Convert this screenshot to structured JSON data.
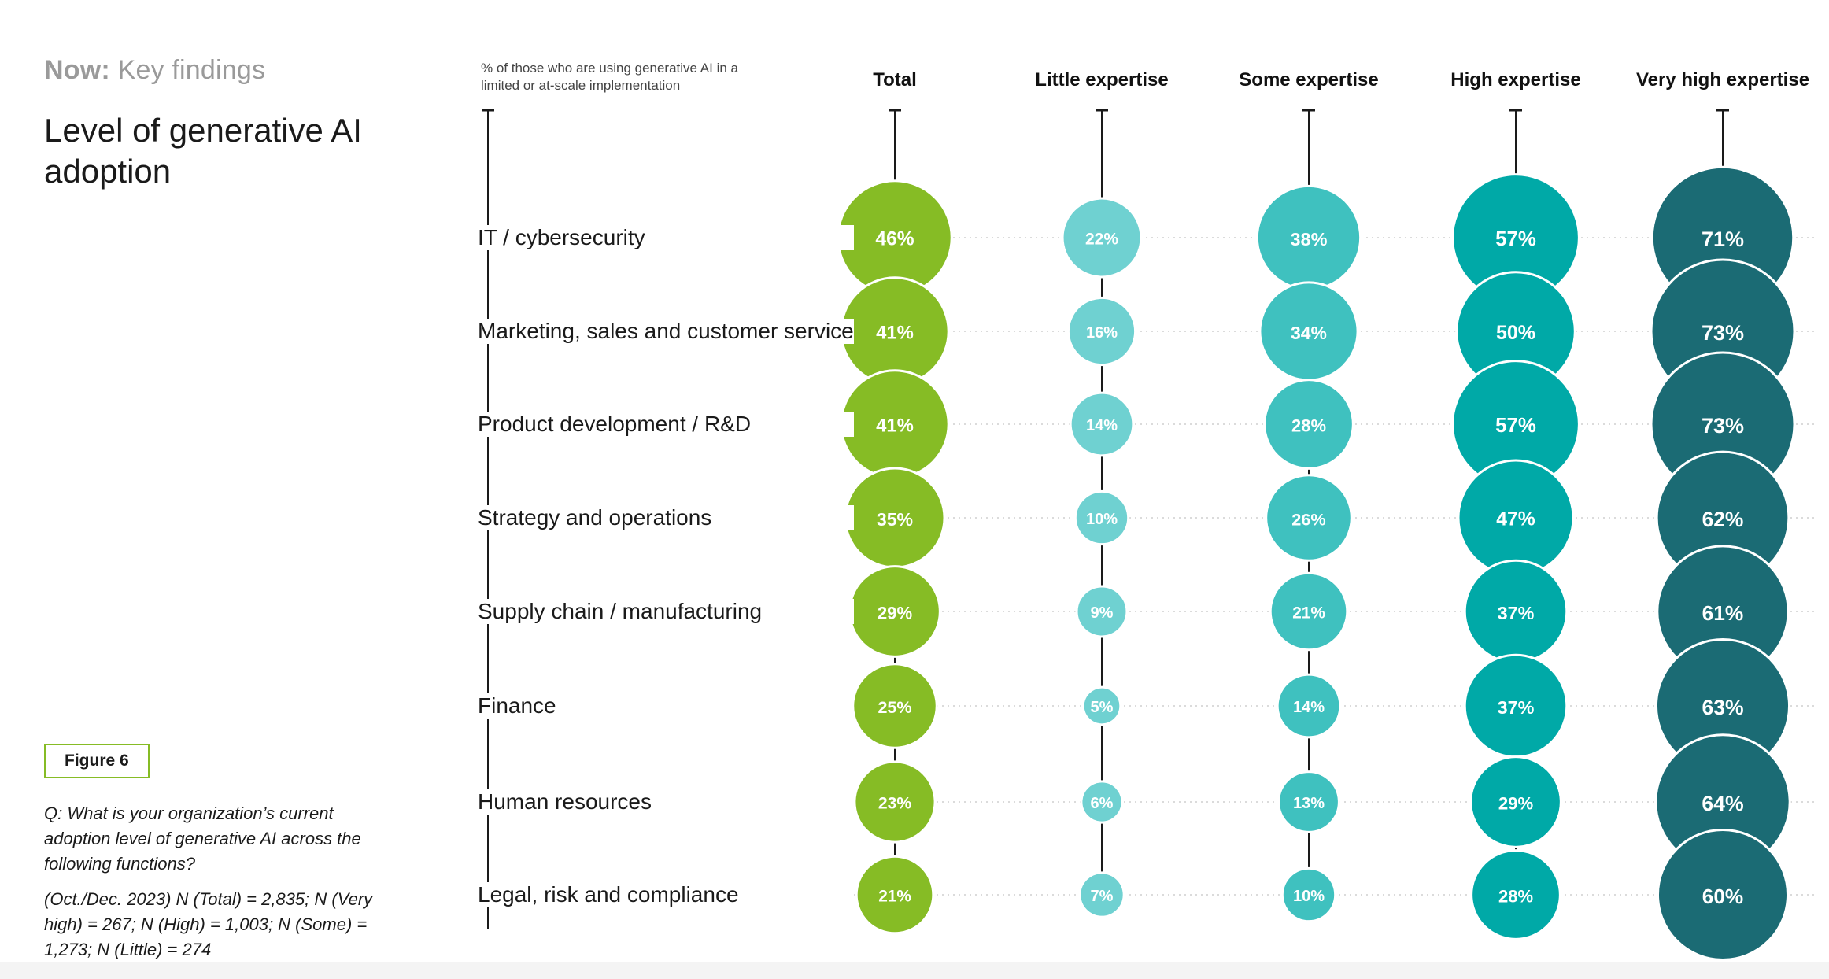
{
  "header": {
    "section_bold": "Now:",
    "section_rest": "Key findings",
    "title": "Level of generative AI adoption"
  },
  "figure": {
    "label": "Figure 6",
    "question": "Q: What is your organization’s current adoption level of generative AI across the following functions?",
    "sample": "(Oct./Dec. 2023) N (Total) = 2,835; N (Very high) = 267; N (High) = 1,003; N (Some) = 1,273; N (Little) = 274"
  },
  "colors": {
    "total": "#86bc25",
    "little": "#6fd1d1",
    "some": "#3fc1bf",
    "high": "#00a9a7",
    "very_high": "#1b6b74",
    "guide": "#cfcfcf",
    "axis": "#1a1a1a"
  },
  "chart_data": {
    "type": "bubble",
    "measure_note": "% of those who are using generative AI in a limited or at-scale implementation",
    "categories": [
      "IT / cybersecurity",
      "Marketing, sales and customer service",
      "Product development / R&D",
      "Strategy and operations",
      "Supply chain / manufacturing",
      "Finance",
      "Human resources",
      "Legal, risk and compliance"
    ],
    "series": [
      {
        "name": "Total",
        "color_key": "total",
        "values": [
          46,
          41,
          41,
          35,
          29,
          25,
          23,
          21
        ]
      },
      {
        "name": "Little expertise",
        "color_key": "little",
        "values": [
          22,
          16,
          14,
          10,
          9,
          5,
          6,
          7
        ]
      },
      {
        "name": "Some expertise",
        "color_key": "some",
        "values": [
          38,
          34,
          28,
          26,
          21,
          14,
          13,
          10
        ]
      },
      {
        "name": "High expertise",
        "color_key": "high",
        "values": [
          57,
          50,
          57,
          47,
          37,
          37,
          29,
          28
        ]
      },
      {
        "name": "Very high expertise",
        "color_key": "very_high",
        "values": [
          71,
          73,
          73,
          62,
          61,
          63,
          64,
          60
        ]
      }
    ],
    "value_suffix": "%"
  }
}
